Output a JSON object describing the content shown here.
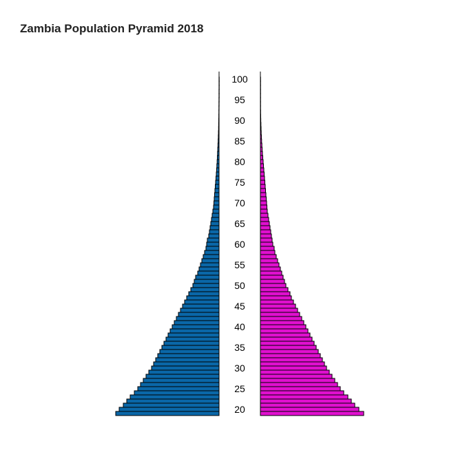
{
  "chart_data": {
    "type": "bar",
    "orientation": "horizontal-pyramid",
    "title": "Zambia Population Pyramid 2018",
    "age_ticks": [
      "20",
      "25",
      "30",
      "35",
      "40",
      "45",
      "50",
      "55",
      "60",
      "65",
      "70",
      "75",
      "80",
      "85",
      "90",
      "95",
      "100"
    ],
    "ages": [
      19,
      20,
      21,
      22,
      23,
      24,
      25,
      26,
      27,
      28,
      29,
      30,
      31,
      32,
      33,
      34,
      35,
      36,
      37,
      38,
      39,
      40,
      41,
      42,
      43,
      44,
      45,
      46,
      47,
      48,
      49,
      50,
      51,
      52,
      53,
      54,
      55,
      56,
      57,
      58,
      59,
      60,
      61,
      62,
      63,
      64,
      65,
      66,
      67,
      68,
      69,
      70,
      71,
      72,
      73,
      74,
      75,
      76,
      77,
      78,
      79,
      80,
      81,
      82,
      83,
      84,
      85,
      86,
      87,
      88,
      89,
      90,
      91,
      92,
      93,
      94,
      95,
      96,
      97,
      98,
      99,
      100
    ],
    "series": [
      {
        "side": "left",
        "color": "#0a67a8",
        "values": [
          150,
          145,
          139,
          134,
          129,
          123,
          118,
          114,
          110,
          106,
          102,
          98,
          95,
          92,
          89,
          86,
          83,
          80,
          77,
          74,
          71,
          68,
          65,
          62,
          59,
          56,
          53,
          50,
          47,
          44,
          41,
          38,
          36,
          34,
          31,
          29,
          27,
          25,
          23,
          21,
          19,
          18,
          17,
          15,
          14,
          13,
          12,
          11,
          10,
          9,
          8,
          7.5,
          7,
          6.5,
          6,
          5.5,
          5,
          4.5,
          4,
          3.6,
          3.2,
          2.8,
          2.5,
          2.2,
          1.9,
          1.6,
          1.3,
          1.1,
          0.9,
          0.7,
          0.6,
          0.5,
          0.4,
          0.3,
          0.25,
          0.2,
          0.15,
          0.1,
          0.1,
          0.05,
          0.05,
          0.05
        ]
      },
      {
        "side": "right",
        "color": "#e010cf",
        "values": [
          150,
          143,
          137,
          132,
          127,
          121,
          116,
          112,
          108,
          104,
          100,
          96,
          93,
          90,
          87,
          84,
          81,
          78,
          75,
          72,
          69,
          66,
          63,
          60,
          57,
          54,
          51,
          48,
          45,
          43,
          40,
          37,
          35,
          33,
          31,
          29,
          27,
          25,
          23,
          21,
          20,
          18,
          17,
          16,
          15,
          14,
          13,
          12,
          11,
          10,
          9.5,
          9,
          8.5,
          8,
          7.5,
          7,
          6.5,
          6,
          5.5,
          5,
          4.5,
          4,
          3.5,
          3,
          2.6,
          2.2,
          1.8,
          1.5,
          1.2,
          1,
          0.8,
          0.6,
          0.5,
          0.4,
          0.3,
          0.25,
          0.2,
          0.15,
          0.1,
          0.1,
          0.05,
          0.05
        ]
      }
    ],
    "xlim": [
      0,
      150
    ],
    "bar_outline": "#000000"
  }
}
